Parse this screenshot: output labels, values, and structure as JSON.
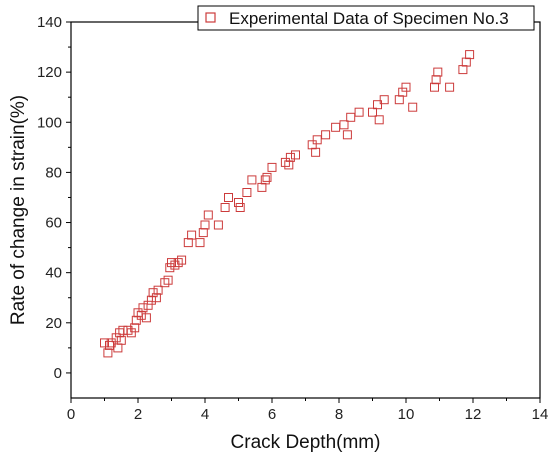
{
  "chart_data": {
    "type": "scatter",
    "title": "",
    "xlabel": "Crack Depth(mm)",
    "ylabel": "Rate of change in strain(%)",
    "xlim": [
      0,
      14
    ],
    "ylim": [
      -10,
      140
    ],
    "x_ticks": [
      0,
      2,
      4,
      6,
      8,
      10,
      12,
      14
    ],
    "y_ticks": [
      0,
      20,
      40,
      60,
      80,
      100,
      120,
      140
    ],
    "grid": false,
    "legend_position": "top-right",
    "marker": "open-square",
    "series": [
      {
        "name": "Experimental Data of Specimen No.3",
        "color": "#cc3b3b",
        "points": [
          [
            1.0,
            12
          ],
          [
            1.1,
            8
          ],
          [
            1.15,
            11
          ],
          [
            1.2,
            12
          ],
          [
            1.35,
            14
          ],
          [
            1.4,
            10
          ],
          [
            1.45,
            16
          ],
          [
            1.5,
            13
          ],
          [
            1.55,
            17
          ],
          [
            1.7,
            17
          ],
          [
            1.8,
            16
          ],
          [
            1.9,
            18
          ],
          [
            1.95,
            21
          ],
          [
            2.0,
            24
          ],
          [
            2.1,
            23
          ],
          [
            2.15,
            26
          ],
          [
            2.25,
            22
          ],
          [
            2.3,
            27
          ],
          [
            2.4,
            29
          ],
          [
            2.45,
            32
          ],
          [
            2.6,
            33
          ],
          [
            2.55,
            30
          ],
          [
            2.8,
            36
          ],
          [
            2.9,
            37
          ],
          [
            2.95,
            42
          ],
          [
            3.0,
            44
          ],
          [
            3.1,
            43
          ],
          [
            3.2,
            44
          ],
          [
            3.3,
            45
          ],
          [
            3.5,
            52
          ],
          [
            3.6,
            55
          ],
          [
            3.85,
            52
          ],
          [
            3.95,
            56
          ],
          [
            4.0,
            59
          ],
          [
            4.1,
            63
          ],
          [
            4.4,
            59
          ],
          [
            4.6,
            66
          ],
          [
            4.7,
            70
          ],
          [
            5.0,
            68
          ],
          [
            5.05,
            66
          ],
          [
            5.25,
            72
          ],
          [
            5.4,
            77
          ],
          [
            5.7,
            74
          ],
          [
            5.8,
            77
          ],
          [
            5.85,
            78
          ],
          [
            6.0,
            82
          ],
          [
            6.4,
            84
          ],
          [
            6.5,
            83
          ],
          [
            6.55,
            86
          ],
          [
            6.7,
            87
          ],
          [
            7.2,
            91
          ],
          [
            7.3,
            88
          ],
          [
            7.35,
            93
          ],
          [
            7.6,
            95
          ],
          [
            7.9,
            98
          ],
          [
            8.15,
            99
          ],
          [
            8.25,
            95
          ],
          [
            8.35,
            102
          ],
          [
            8.6,
            104
          ],
          [
            9.0,
            104
          ],
          [
            9.15,
            107
          ],
          [
            9.2,
            101
          ],
          [
            9.35,
            109
          ],
          [
            9.8,
            109
          ],
          [
            9.9,
            112
          ],
          [
            10.0,
            114
          ],
          [
            10.2,
            106
          ],
          [
            10.85,
            114
          ],
          [
            10.9,
            117
          ],
          [
            10.95,
            120
          ],
          [
            11.3,
            114
          ],
          [
            11.7,
            121
          ],
          [
            11.8,
            124
          ],
          [
            11.9,
            127
          ]
        ]
      }
    ]
  }
}
